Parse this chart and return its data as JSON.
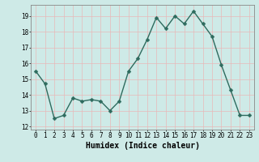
{
  "x": [
    0,
    1,
    2,
    3,
    4,
    5,
    6,
    7,
    8,
    9,
    10,
    11,
    12,
    13,
    14,
    15,
    16,
    17,
    18,
    19,
    20,
    21,
    22,
    23
  ],
  "y": [
    15.5,
    14.7,
    12.5,
    12.7,
    13.8,
    13.6,
    13.7,
    13.6,
    13.0,
    13.6,
    15.5,
    16.3,
    17.5,
    18.9,
    18.2,
    19.0,
    18.5,
    19.3,
    18.5,
    17.7,
    15.9,
    14.3,
    12.7,
    12.7
  ],
  "line_color": "#2e6b5e",
  "marker": "D",
  "markersize": 2.5,
  "linewidth": 1.0,
  "bg_color": "#ceeae7",
  "grid_color": "#e8b8b8",
  "xlabel": "Humidex (Indice chaleur)",
  "xlabel_fontsize": 7,
  "xlim": [
    -0.5,
    23.5
  ],
  "ylim": [
    11.8,
    19.7
  ],
  "yticks": [
    12,
    13,
    14,
    15,
    16,
    17,
    18,
    19
  ],
  "xtick_labels": [
    "0",
    "1",
    "2",
    "3",
    "4",
    "5",
    "6",
    "7",
    "8",
    "9",
    "10",
    "11",
    "12",
    "13",
    "14",
    "15",
    "16",
    "17",
    "18",
    "19",
    "20",
    "21",
    "22",
    "23"
  ],
  "tick_fontsize": 5.5,
  "tick_color": "#000000",
  "axis_color": "#888888"
}
